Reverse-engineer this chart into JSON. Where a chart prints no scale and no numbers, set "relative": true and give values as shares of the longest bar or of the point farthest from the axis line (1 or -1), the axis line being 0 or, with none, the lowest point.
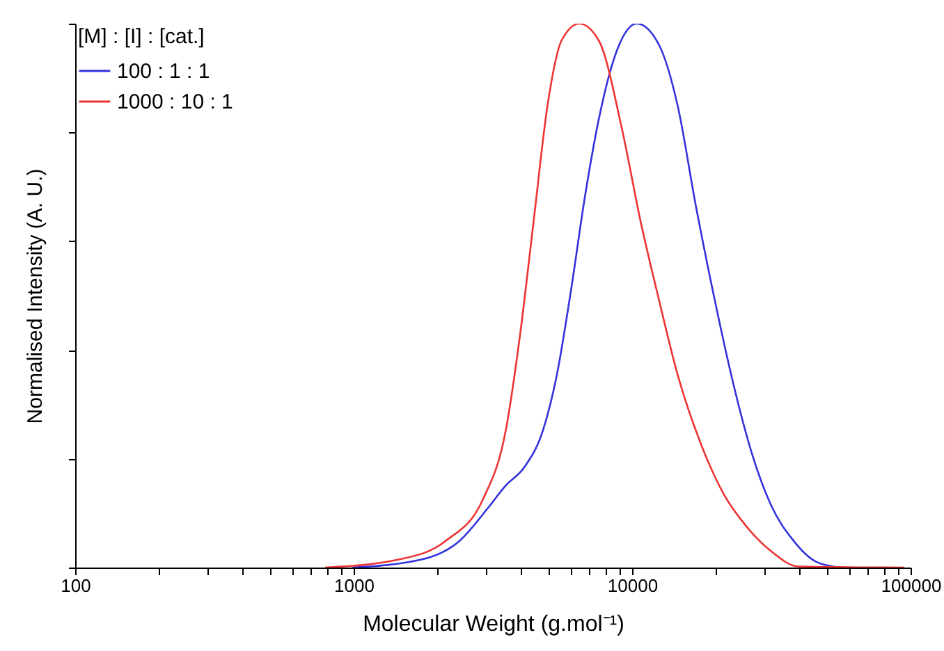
{
  "chart_data": {
    "type": "line",
    "relative": true,
    "xlabel": "Molecular Weight (g.mol⁻¹)",
    "ylabel": "Normalised Intensity (A. U.)",
    "legend_title": "[M] : [I] : [cat.]",
    "log": "x",
    "xlim": [
      100,
      100000
    ],
    "xticks": [
      100,
      {
        "value": 200,
        "label": null
      },
      {
        "value": 300,
        "label": null
      },
      {
        "value": 400,
        "label": null
      },
      {
        "value": 500,
        "label": null
      },
      {
        "value": 600,
        "label": null
      },
      {
        "value": 700,
        "label": null
      },
      {
        "value": 800,
        "label": null
      },
      {
        "value": 900,
        "label": null
      },
      1000,
      {
        "value": 2000,
        "label": null
      },
      {
        "value": 3000,
        "label": null
      },
      {
        "value": 4000,
        "label": null
      },
      {
        "value": 5000,
        "label": null
      },
      {
        "value": 6000,
        "label": null
      },
      {
        "value": 7000,
        "label": null
      },
      {
        "value": 8000,
        "label": null
      },
      {
        "value": 9000,
        "label": null
      },
      10000,
      {
        "value": 20000,
        "label": null
      },
      {
        "value": 30000,
        "label": null
      },
      {
        "value": 40000,
        "label": null
      },
      {
        "value": 50000,
        "label": null
      },
      {
        "value": 60000,
        "label": null
      },
      {
        "value": 70000,
        "label": null
      },
      {
        "value": 80000,
        "label": null
      },
      {
        "value": 90000,
        "label": null
      },
      100000
    ],
    "grid": false,
    "legend": "top left",
    "tick_labels": "x",
    "marker": "none",
    "line_style": "solid",
    "series": [
      {
        "name": "100 : 1 : 1",
        "color": "#3333dd",
        "x": [
          990,
          1760,
          2400,
          3020,
          3520,
          4110,
          4790,
          5370,
          6030,
          6760,
          7590,
          8840,
          10390,
          12490,
          14560,
          16980,
          19800,
          23090,
          26920,
          31390,
          38020,
          46030,
          55800
        ],
        "values": [
          0,
          0.015,
          0.049,
          0.108,
          0.151,
          0.185,
          0.253,
          0.355,
          0.509,
          0.68,
          0.824,
          0.952,
          1.0,
          0.961,
          0.85,
          0.662,
          0.492,
          0.338,
          0.21,
          0.117,
          0.049,
          0.01,
          0
        ]
      },
      {
        "name": "1000 : 10 : 1",
        "color": "#ee3333",
        "x": [
          790,
          1460,
          2140,
          2910,
          3520,
          3950,
          4430,
          4970,
          5580,
          6460,
          7590,
          9190,
          10720,
          12490,
          14560,
          17640,
          21380,
          25880,
          31390,
          39500,
          95000
        ],
        "values": [
          0,
          0.015,
          0.049,
          0.125,
          0.253,
          0.424,
          0.637,
          0.85,
          0.969,
          1.0,
          0.969,
          0.807,
          0.637,
          0.492,
          0.355,
          0.228,
          0.134,
          0.074,
          0.031,
          0.002,
          0
        ]
      }
    ]
  }
}
